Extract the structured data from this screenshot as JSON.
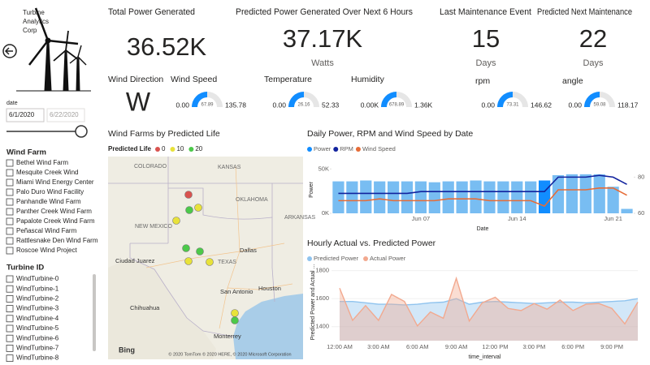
{
  "logo": {
    "lines": [
      "Turbine",
      "Analytics",
      "Corp"
    ]
  },
  "kpis": [
    {
      "title": "Total Power Generated",
      "value": "36.52K"
    },
    {
      "title": "Predicted Power Generated Over Next 6 Hours",
      "value": "37.17K",
      "unit": "Watts"
    },
    {
      "title": "Last Maintenance Event",
      "value": "15",
      "unit": "Days"
    },
    {
      "title": "Predicted Next Maintenance",
      "value": "22",
      "unit": "Days"
    }
  ],
  "wind_direction": {
    "title": "Wind Direction",
    "value": "W"
  },
  "gauges": [
    {
      "title": "Wind Speed",
      "min": {
        "value": 0,
        "label": "0.00"
      },
      "max": 135.78,
      "value": 67.89
    },
    {
      "title": "Temperature",
      "min": {
        "value": 0,
        "label": "0.00"
      },
      "max": 52.33,
      "value": 26.16
    },
    {
      "title": "Humidity",
      "min": {
        "value": 0,
        "label": "0.00K"
      },
      "max": {
        "value": 1360,
        "label": "1.36K"
      },
      "value": 678.89
    },
    {
      "title": "rpm",
      "min": {
        "value": 0,
        "label": "0.00"
      },
      "max": 146.62,
      "value": 73.31
    },
    {
      "title": "angle",
      "min": {
        "value": 0,
        "label": "0.00"
      },
      "max": 118.17,
      "value": 59.08
    }
  ],
  "date_slicer": {
    "title": "date",
    "start": "6/1/2020",
    "end": "6/22/2020"
  },
  "wind_farm_slicer": {
    "title": "Wind Farm",
    "items": [
      "Bethel Wind Farm",
      "Mesquite Creek Wind",
      "Miami Wind Energy Center",
      "Palo Duro Wind Facility",
      "Panhandle Wind Farm",
      "Panther Creek Wind Farm",
      "Papalote Creek Wind Farm",
      "Peñascal Wind Farm",
      "Rattlesnake Den Wind Farm",
      "Roscoe Wind Project"
    ]
  },
  "turbine_slicer": {
    "title": "Turbine ID",
    "items": [
      "WindTurbine-0",
      "WindTurbine-1",
      "WindTurbine-2",
      "WindTurbine-3",
      "WindTurbine-4",
      "WindTurbine-5",
      "WindTurbine-6",
      "WindTurbine-7",
      "WindTurbine-8"
    ]
  },
  "map": {
    "title": "Wind Farms by Predicted Life",
    "legend_title": "Predicted Life",
    "scale": [
      {
        "value": 0,
        "color": "#d9534f"
      },
      {
        "value": 10,
        "color": "#e8e23a"
      },
      {
        "value": 20,
        "color": "#4cc94a"
      }
    ],
    "points": [
      0,
      20,
      10,
      10,
      20,
      20,
      10,
      10,
      10,
      20
    ],
    "places": [
      "COLORADO",
      "KANSAS",
      "OKLAHOMA",
      "NEW MEXICO",
      "ARKANSAS",
      "TEXAS",
      "Dallas",
      "Ciudad Juarez",
      "San Antonio",
      "Houston",
      "Chihuahua",
      "Monterrey"
    ],
    "provider": "Bing",
    "attribution": "© 2020 TomTom © 2020 HERE, © 2020 Microsoft Corporation"
  },
  "chart_data": [
    {
      "type": "combo",
      "title": "Daily Power, RPM and Wind Speed by Date",
      "x_label": "Date",
      "y_label": "Power",
      "categories": [
        null,
        null,
        null,
        null,
        null,
        null,
        "Jun 07",
        null,
        null,
        null,
        null,
        null,
        null,
        "Jun 14",
        null,
        null,
        null,
        null,
        null,
        null,
        "Jun 21",
        null
      ],
      "series": [
        {
          "name": "Power",
          "type": "bar",
          "color": "#118dff",
          "colors": [
            "#78bdf2",
            "#78bdf2",
            "#78bdf2",
            "#78bdf2",
            "#78bdf2",
            "#78bdf2",
            "#78bdf2",
            "#78bdf2",
            "#78bdf2",
            "#78bdf2",
            "#78bdf2",
            "#78bdf2",
            "#78bdf2",
            "#78bdf2",
            "#78bdf2",
            "#118dff",
            "#78bdf2",
            "#78bdf2",
            "#78bdf2",
            "#78bdf2",
            "#78bdf2",
            "#78bdf2"
          ],
          "values": [
            36000,
            36000,
            37000,
            36000,
            36000,
            36000,
            36000,
            35000,
            36000,
            36000,
            37000,
            36000,
            36000,
            36000,
            36000,
            37000,
            43000,
            44000,
            44000,
            44000,
            30000,
            5000
          ]
        },
        {
          "name": "RPM",
          "type": "line",
          "axis": "y2",
          "color": "#12239e",
          "values": [
            71,
            71,
            71,
            71,
            71,
            71,
            72,
            72,
            72,
            72,
            72,
            72,
            72,
            72,
            72,
            72,
            80,
            80,
            80,
            81,
            80,
            76
          ]
        },
        {
          "name": "Wind Speed",
          "type": "line",
          "axis": "y2",
          "color": "#e66c37",
          "values": [
            67,
            67,
            67,
            68,
            67,
            67,
            67,
            67,
            68,
            68,
            68,
            67,
            67,
            67,
            67,
            64,
            73,
            73,
            73,
            74,
            74,
            70
          ]
        }
      ],
      "ylim": [
        0,
        53000
      ],
      "yticks": [
        {
          "value": 0,
          "label": "0K"
        },
        {
          "value": 50000,
          "label": "50K"
        }
      ],
      "y2lim": [
        60,
        86
      ],
      "y2ticks": [
        60,
        80
      ]
    },
    {
      "type": "area",
      "title": "Hourly Actual vs. Predicted Power",
      "x_label": "time_interval",
      "y_label": "Predicted Power and Actual ...",
      "categories": [
        "12:00 AM",
        null,
        null,
        "3:00 AM",
        null,
        null,
        "6:00 AM",
        null,
        null,
        "9:00 AM",
        null,
        null,
        "12:00 PM",
        null,
        null,
        "3:00 PM",
        null,
        null,
        "6:00 PM",
        null,
        null,
        "9:00 PM",
        null,
        null
      ],
      "series": [
        {
          "name": "Predicted Power",
          "color": "#8fc3ee",
          "values": [
            1580,
            1580,
            1570,
            1560,
            1560,
            1555,
            1560,
            1570,
            1575,
            1600,
            1560,
            1575,
            1580,
            1575,
            1570,
            1565,
            1570,
            1575,
            1575,
            1570,
            1575,
            1580,
            1585,
            1600
          ]
        },
        {
          "name": "Actual Power",
          "color": "#f2a98f",
          "values": [
            1675,
            1445,
            1550,
            1445,
            1630,
            1580,
            1405,
            1505,
            1460,
            1745,
            1440,
            1570,
            1610,
            1530,
            1515,
            1565,
            1525,
            1590,
            1515,
            1560,
            1565,
            1530,
            1420,
            1575
          ]
        }
      ],
      "ylim": [
        1300,
        1850
      ],
      "yticks": [
        1400,
        1600,
        1800
      ]
    }
  ]
}
